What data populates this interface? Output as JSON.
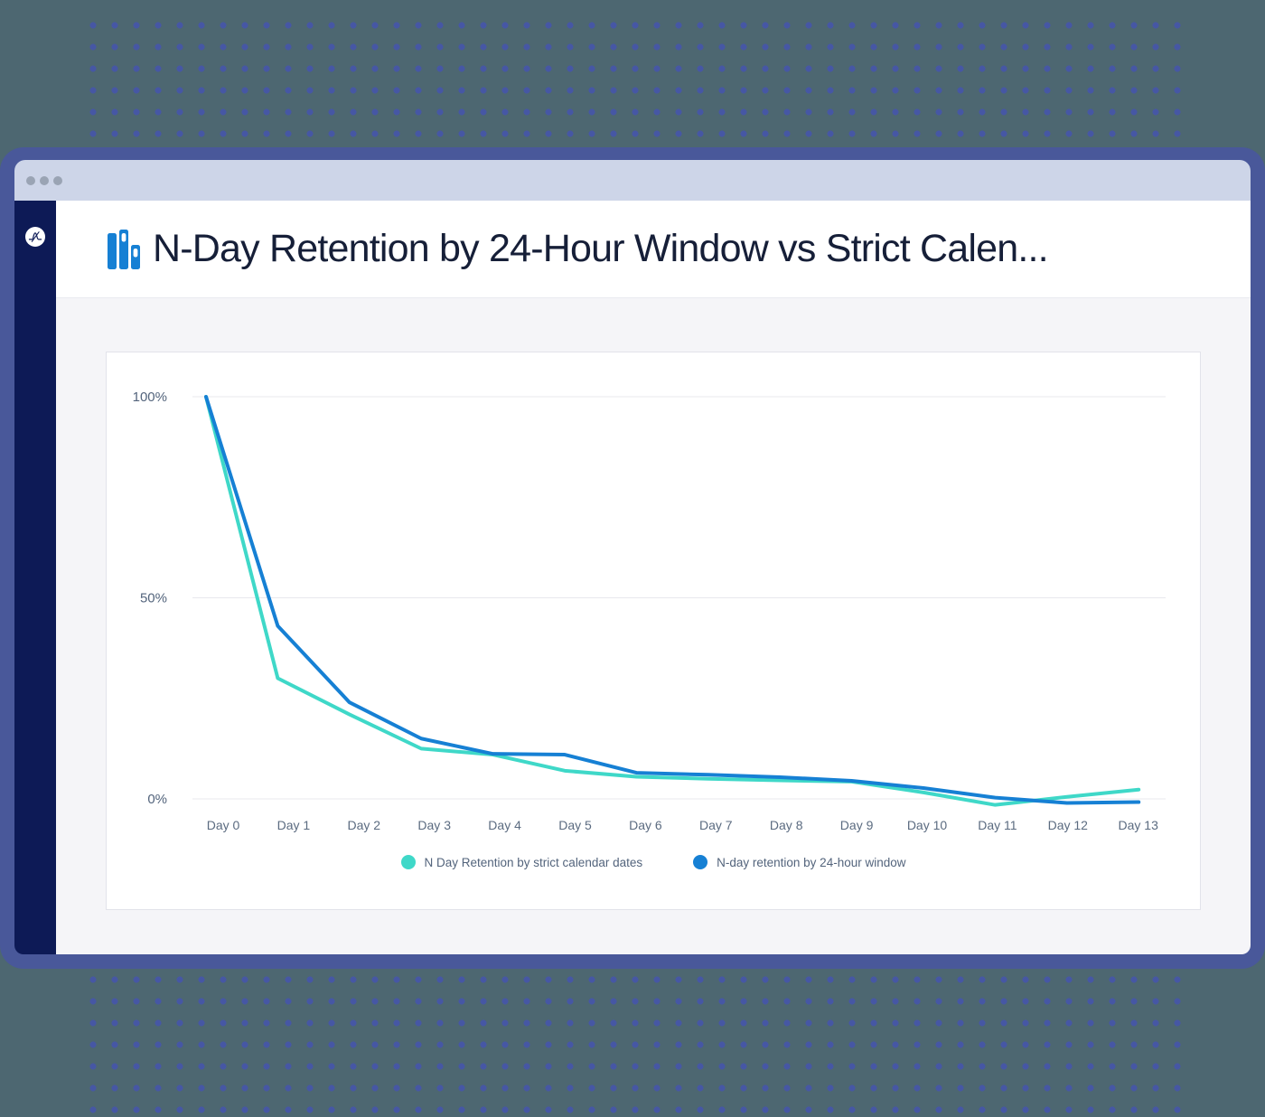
{
  "window": {
    "control_dots_count": 3
  },
  "sidebar": {
    "logo_icon": "amplitude-logo"
  },
  "header": {
    "icon": "bar-chart-icon",
    "title": "N-Day Retention by 24-Hour Window vs Strict Calen..."
  },
  "colors": {
    "brand_blue": "#1680d4",
    "series_teal": "#3fd8c8",
    "sidebar_navy": "#0d1a56",
    "frame_indigo": "#49589a"
  },
  "chart_data": {
    "type": "line",
    "categories": [
      "Day 0",
      "Day 1",
      "Day 2",
      "Day 3",
      "Day 4",
      "Day 5",
      "Day 6",
      "Day 7",
      "Day 8",
      "Day 9",
      "Day 10",
      "Day 11",
      "Day 12",
      "Day 13"
    ],
    "series": [
      {
        "name": "N Day Retention by strict calendar dates",
        "color": "#3fd8c8",
        "values": [
          100,
          30,
          21,
          12.5,
          11,
          7,
          5.5,
          5,
          4.6,
          4.3,
          1.6,
          -1.5,
          0.5,
          2.3
        ]
      },
      {
        "name": "N-day retention by 24-hour window",
        "color": "#1680d4",
        "values": [
          100,
          43,
          24,
          15,
          11.2,
          11,
          6.5,
          6,
          5.4,
          4.5,
          2.7,
          0.3,
          -1,
          -0.8
        ]
      }
    ],
    "y_axis": {
      "min": 0,
      "max": 100,
      "ticks": [
        {
          "label": "100%",
          "value": 100
        },
        {
          "label": "50%",
          "value": 50
        },
        {
          "label": "0%",
          "value": 0
        }
      ]
    },
    "x_axis": {
      "ticks_are_categories": true
    },
    "grid": "horizontal",
    "legend_position": "bottom"
  }
}
